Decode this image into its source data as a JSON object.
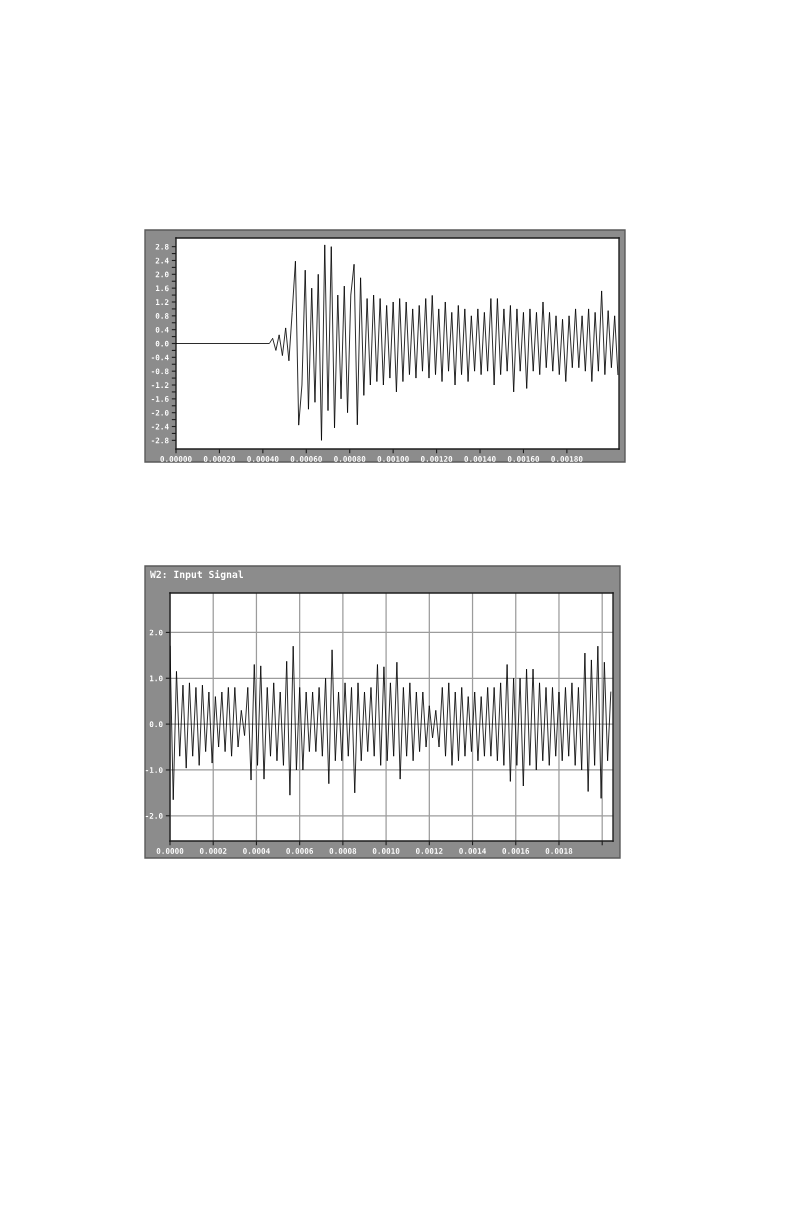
{
  "chart_data": [
    {
      "type": "line",
      "color": "#000000",
      "x": [
        0,
        0.00043,
        0.000445,
        0.00046,
        0.000475,
        0.00049,
        0.000505,
        0.00052,
        0.000535,
        0.00055,
        0.000565,
        0.00058,
        0.000595,
        0.00061,
        0.000625,
        0.00064,
        0.000655,
        0.00067,
        0.000685,
        0.0007,
        0.000715,
        0.00073,
        0.000745,
        0.00076,
        0.000775,
        0.00079,
        0.000805,
        0.00082,
        0.000835,
        0.00085,
        0.000865,
        0.00088,
        0.000895,
        0.00091,
        0.000925,
        0.00094,
        0.000955,
        0.00097,
        0.000985,
        0.001,
        0.001015,
        0.00103,
        0.001045,
        0.00106,
        0.001075,
        0.00109,
        0.001105,
        0.00112,
        0.001135,
        0.00115,
        0.001165,
        0.00118,
        0.001195,
        0.00121,
        0.001225,
        0.00124,
        0.001255,
        0.00127,
        0.001285,
        0.0013,
        0.001315,
        0.00133,
        0.001345,
        0.00136,
        0.001375,
        0.00139,
        0.001405,
        0.00142,
        0.001435,
        0.00145,
        0.001465,
        0.00148,
        0.001495,
        0.00151,
        0.001525,
        0.00154,
        0.001555,
        0.00157,
        0.001585,
        0.0016,
        0.001615,
        0.00163,
        0.001645,
        0.00166,
        0.001675,
        0.00169,
        0.001705,
        0.00172,
        0.001735,
        0.00175,
        0.001765,
        0.00178,
        0.001795,
        0.00181,
        0.001825,
        0.00184,
        0.001855,
        0.00187,
        0.001885,
        0.0019,
        0.001915,
        0.00193,
        0.001945,
        0.00196,
        0.001975,
        0.00199,
        0.002005,
        0.00202,
        0.002035
      ],
      "values": [
        0,
        0,
        0.15,
        -0.2,
        0.25,
        -0.35,
        0.45,
        -0.5,
        0.9,
        2.38,
        -2.36,
        -1.2,
        2.12,
        -1.9,
        1.6,
        -1.7,
        2.0,
        -2.8,
        2.85,
        -1.94,
        2.8,
        -2.44,
        1.4,
        -1.6,
        1.66,
        -2.0,
        1.4,
        2.29,
        -2.35,
        1.9,
        -1.5,
        1.3,
        -1.2,
        1.4,
        -1.1,
        1.3,
        -1.2,
        1.1,
        -1.0,
        1.2,
        -1.4,
        1.3,
        -1.1,
        1.2,
        -0.9,
        1.0,
        -1.0,
        1.1,
        -0.8,
        1.3,
        -1.0,
        1.39,
        -0.9,
        1.0,
        -1.1,
        1.2,
        -0.8,
        0.9,
        -1.2,
        1.1,
        -0.9,
        1.0,
        -1.1,
        0.8,
        -0.8,
        1.0,
        -0.9,
        0.9,
        -0.8,
        1.3,
        -1.2,
        1.3,
        -0.9,
        1.0,
        -0.8,
        1.1,
        -1.4,
        1.0,
        -0.8,
        0.9,
        -1.3,
        1.0,
        -0.8,
        0.9,
        -0.9,
        1.2,
        -0.7,
        0.9,
        -0.8,
        0.8,
        -0.9,
        0.7,
        -1.1,
        0.8,
        -0.7,
        1.0,
        -0.7,
        0.8,
        -0.8,
        1.0,
        -1.1,
        0.9,
        -0.8,
        1.52,
        -0.9,
        0.95,
        -0.7,
        0.8,
        -0.9
      ],
      "xlim": [
        0,
        0.00204
      ],
      "ylim": [
        -3.05,
        3.05
      ],
      "xticks": [
        {
          "value": 0,
          "label": "0.00000"
        },
        {
          "value": 0.0002,
          "label": "0.00020"
        },
        {
          "value": 0.0004,
          "label": "0.00040"
        },
        {
          "value": 0.0006,
          "label": "0.00060"
        },
        {
          "value": 0.0008,
          "label": "0.00080"
        },
        {
          "value": 0.001,
          "label": "0.00100"
        },
        {
          "value": 0.0012,
          "label": "0.00120"
        },
        {
          "value": 0.0014,
          "label": "0.00140"
        },
        {
          "value": 0.0016,
          "label": "0.00160"
        },
        {
          "value": 0.0018,
          "label": "0.00180"
        }
      ],
      "yticks": [
        {
          "value": 2.8,
          "label": "2.8"
        },
        {
          "value": 2.6,
          "label": null
        },
        {
          "value": 2.4,
          "label": "2.4"
        },
        {
          "value": 2.2,
          "label": null
        },
        {
          "value": 2.0,
          "label": "2.0"
        },
        {
          "value": 1.8,
          "label": null
        },
        {
          "value": 1.6,
          "label": "1.6"
        },
        {
          "value": 1.4,
          "label": null
        },
        {
          "value": 1.2,
          "label": "1.2"
        },
        {
          "value": 1.0,
          "label": null
        },
        {
          "value": 0.8,
          "label": "0.8"
        },
        {
          "value": 0.6,
          "label": null
        },
        {
          "value": 0.4,
          "label": "0.4"
        },
        {
          "value": 0.2,
          "label": null
        },
        {
          "value": 0,
          "label": "0.0"
        },
        {
          "value": -0.2,
          "label": null
        },
        {
          "value": -0.4,
          "label": "-0.4"
        },
        {
          "value": -0.6,
          "label": null
        },
        {
          "value": -0.8,
          "label": "-0.8"
        },
        {
          "value": -1.0,
          "label": null
        },
        {
          "value": -1.2,
          "label": "-1.2"
        },
        {
          "value": -1.4,
          "label": null
        },
        {
          "value": -1.6,
          "label": "-1.6"
        },
        {
          "value": -1.8,
          "label": null
        },
        {
          "value": -2.0,
          "label": "-2.0"
        },
        {
          "value": -2.2,
          "label": null
        },
        {
          "value": -2.4,
          "label": "-2.4"
        },
        {
          "value": -2.6,
          "label": null
        },
        {
          "value": -2.8,
          "label": "-2.8"
        }
      ]
    },
    {
      "type": "line",
      "title": "W2: Input Signal",
      "color": "#000000",
      "grid": true,
      "x": [
        0,
        1.5e-05,
        3e-05,
        4.5e-05,
        6e-05,
        7.5e-05,
        9e-05,
        0.000105,
        0.00012,
        0.000135,
        0.00015,
        0.000165,
        0.00018,
        0.000195,
        0.00021,
        0.000225,
        0.00024,
        0.000255,
        0.00027,
        0.000285,
        0.0003,
        0.000315,
        0.00033,
        0.000345,
        0.00036,
        0.000375,
        0.00039,
        0.000405,
        0.00042,
        0.000435,
        0.00045,
        0.000465,
        0.00048,
        0.000495,
        0.00051,
        0.000525,
        0.00054,
        0.000555,
        0.00057,
        0.000585,
        0.0006,
        0.000615,
        0.00063,
        0.000645,
        0.00066,
        0.000675,
        0.00069,
        0.000705,
        0.00072,
        0.000735,
        0.00075,
        0.000765,
        0.00078,
        0.000795,
        0.00081,
        0.000825,
        0.00084,
        0.000855,
        0.00087,
        0.000885,
        0.0009,
        0.000915,
        0.00093,
        0.000945,
        0.00096,
        0.000975,
        0.00099,
        0.001005,
        0.00102,
        0.001035,
        0.00105,
        0.001065,
        0.00108,
        0.001095,
        0.00111,
        0.001125,
        0.00114,
        0.001155,
        0.00117,
        0.001185,
        0.0012,
        0.001215,
        0.00123,
        0.001245,
        0.00126,
        0.001275,
        0.00129,
        0.001305,
        0.00132,
        0.001335,
        0.00135,
        0.001365,
        0.00138,
        0.001395,
        0.00141,
        0.001425,
        0.00144,
        0.001455,
        0.00147,
        0.001485,
        0.0015,
        0.001515,
        0.00153,
        0.001545,
        0.00156,
        0.001575,
        0.00159,
        0.001605,
        0.00162,
        0.001635,
        0.00165,
        0.001665,
        0.00168,
        0.001695,
        0.00171,
        0.001725,
        0.00174,
        0.001755,
        0.00177,
        0.001785,
        0.0018,
        0.001815,
        0.00183,
        0.001845,
        0.00186,
        0.001875,
        0.00189,
        0.001905,
        0.00192,
        0.001935,
        0.00195,
        0.001965,
        0.00198,
        0.001995,
        0.00201,
        0.002025,
        0.00204
      ],
      "values": [
        1.7,
        -1.65,
        1.15,
        -0.7,
        0.85,
        -0.96,
        0.9,
        -0.7,
        0.8,
        -0.9,
        0.85,
        -0.6,
        0.7,
        -0.85,
        0.6,
        -0.5,
        0.7,
        -0.6,
        0.8,
        -0.7,
        0.8,
        -0.5,
        0.3,
        -0.25,
        0.8,
        -1.22,
        1.3,
        -0.9,
        1.27,
        -1.2,
        0.8,
        -0.7,
        0.9,
        -0.8,
        0.7,
        -0.9,
        1.37,
        -1.55,
        1.7,
        -1.0,
        0.8,
        -1.0,
        0.7,
        -0.6,
        0.7,
        -0.6,
        0.8,
        -0.7,
        1.0,
        -1.3,
        1.62,
        -0.8,
        0.7,
        -0.8,
        0.9,
        -0.7,
        0.8,
        -1.5,
        0.9,
        -0.8,
        0.7,
        -0.6,
        0.8,
        -0.7,
        1.3,
        -0.9,
        1.25,
        -0.8,
        0.9,
        -0.7,
        1.35,
        -1.2,
        0.8,
        -0.7,
        0.9,
        -0.8,
        0.7,
        -0.6,
        0.7,
        -0.5,
        0.4,
        -0.3,
        0.3,
        -0.5,
        0.8,
        -0.7,
        0.9,
        -0.9,
        0.7,
        -0.8,
        0.8,
        -0.7,
        0.6,
        -0.6,
        0.7,
        -0.8,
        0.6,
        -0.7,
        0.8,
        -0.7,
        0.8,
        -0.8,
        0.9,
        -0.9,
        1.3,
        -1.25,
        1.0,
        -0.9,
        1.0,
        -1.35,
        1.2,
        -0.9,
        1.2,
        -1.0,
        0.9,
        -0.8,
        0.8,
        -0.9,
        0.8,
        -0.7,
        0.7,
        -0.8,
        0.8,
        -0.7,
        0.9,
        -0.9,
        0.8,
        -1.0,
        1.55,
        -1.47,
        1.4,
        -0.9,
        1.7,
        -1.62,
        1.35,
        -0.8,
        0.7
      ],
      "xlim": [
        0,
        0.00205
      ],
      "ylim": [
        -2.55,
        2.86
      ],
      "xticks": [
        {
          "value": 0,
          "label": "0.0000"
        },
        {
          "value": 0.0002,
          "label": "0.0002"
        },
        {
          "value": 0.0004,
          "label": "0.0004"
        },
        {
          "value": 0.0006,
          "label": "0.0006"
        },
        {
          "value": 0.0008,
          "label": "0.0008"
        },
        {
          "value": 0.001,
          "label": "0.0010"
        },
        {
          "value": 0.0012,
          "label": "0.0012"
        },
        {
          "value": 0.0014,
          "label": "0.0014"
        },
        {
          "value": 0.0016,
          "label": "0.0016"
        },
        {
          "value": 0.0018,
          "label": "0.0018"
        },
        {
          "value": 0.002,
          "label": null
        }
      ],
      "yticks": [
        {
          "value": 2.0,
          "label": "2.0"
        },
        {
          "value": 1.0,
          "label": "1.0"
        },
        {
          "value": 0,
          "label": "0.0"
        },
        {
          "value": -1.0,
          "label": "-1.0"
        },
        {
          "value": -2.0,
          "label": "-2.0"
        }
      ]
    }
  ]
}
